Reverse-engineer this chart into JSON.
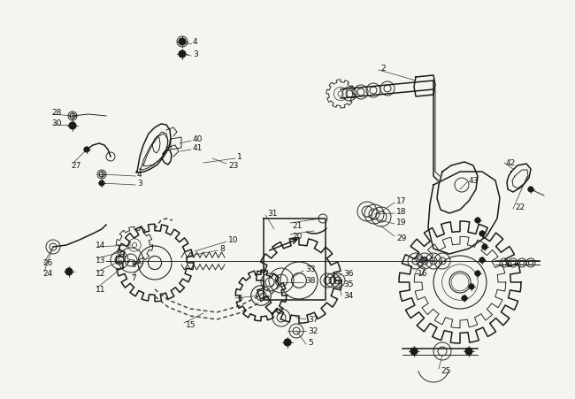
{
  "background_color": "#f5f5f0",
  "fig_width": 6.5,
  "fig_height": 4.52,
  "dpi": 100,
  "label_font_size": 6.5,
  "label_color": "#111111",
  "line_color": "#1a1a1a",
  "lw_main": 1.1,
  "lw_thin": 0.65,
  "lw_chain": 0.8
}
